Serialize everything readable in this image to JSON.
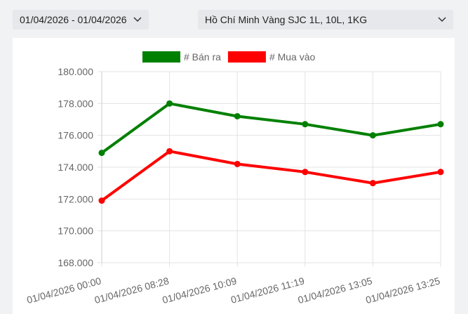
{
  "controls": {
    "date_range": "01/04/2026 - 01/04/2026",
    "product": "Hồ Chí Minh Vàng SJC 1L, 10L, 1KG"
  },
  "chart_data": {
    "type": "line",
    "categories": [
      "01/04/2026 00:00",
      "01/04/2026 08:28",
      "01/04/2026 10:09",
      "01/04/2026 11:19",
      "01/04/2026 13:05",
      "01/04/2026 13:25"
    ],
    "series": [
      {
        "name": "# Bán ra",
        "color": "#008000",
        "values": [
          174900,
          178000,
          177200,
          176700,
          176000,
          176700
        ]
      },
      {
        "name": "# Mua vào",
        "color": "#ff0000",
        "values": [
          171900,
          175000,
          174200,
          173700,
          173000,
          173700
        ]
      }
    ],
    "ylim": [
      168000,
      180000
    ],
    "yticks": [
      {
        "value": 168000,
        "label": "168.000"
      },
      {
        "value": 170000,
        "label": "170.000"
      },
      {
        "value": 172000,
        "label": "172.000"
      },
      {
        "value": 174000,
        "label": "174.000"
      },
      {
        "value": 176000,
        "label": "176.000"
      },
      {
        "value": 178000,
        "label": "178.000"
      },
      {
        "value": 180000,
        "label": "180.000"
      }
    ],
    "grid": true
  }
}
